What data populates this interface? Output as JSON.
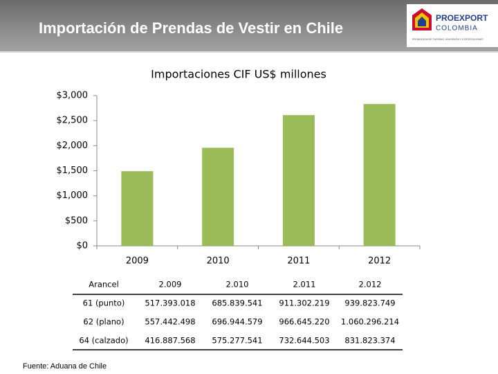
{
  "header": {
    "title": "Importación de Prendas de Vestir en Chile"
  },
  "logo": {
    "name": "PROEXPORT",
    "country": "COLOMBIA",
    "tagline": "PROMOCIÓN DE TURISMO, INVERSIÓN Y EXPORTACIONES"
  },
  "chart_data": {
    "type": "bar",
    "title": "Importaciones CIF US$ millones",
    "categories": [
      "2009",
      "2010",
      "2011",
      "2012"
    ],
    "values": [
      1491,
      1958,
      2611,
      2832
    ],
    "color": "#9bbb59",
    "ylim": [
      0,
      3000
    ],
    "yticks": [
      {
        "value": 0,
        "label": "$0"
      },
      {
        "value": 500,
        "label": "$500"
      },
      {
        "value": 1000,
        "label": "$1,000"
      },
      {
        "value": 1500,
        "label": "$1,500"
      },
      {
        "value": 2000,
        "label": "$2,000"
      },
      {
        "value": 2500,
        "label": "$2,500"
      },
      {
        "value": 3000,
        "label": "$3,000"
      }
    ],
    "grid": false
  },
  "table": {
    "header": [
      "Arancel",
      "2.009",
      "2.010",
      "2.011",
      "2.012"
    ],
    "rows": [
      [
        "61 (punto)",
        "517.393.018",
        "685.839.541",
        "911.302.219",
        "939.823.749"
      ],
      [
        "62 (plano)",
        "557.442.498",
        "696.944.579",
        "966.645.220",
        "1.060.296.214"
      ],
      [
        "64 (calzado)",
        "416.887.568",
        "575.277.541",
        "732.644.503",
        "831.823.374"
      ]
    ]
  },
  "footer": "Fuente: Aduana de Chile"
}
